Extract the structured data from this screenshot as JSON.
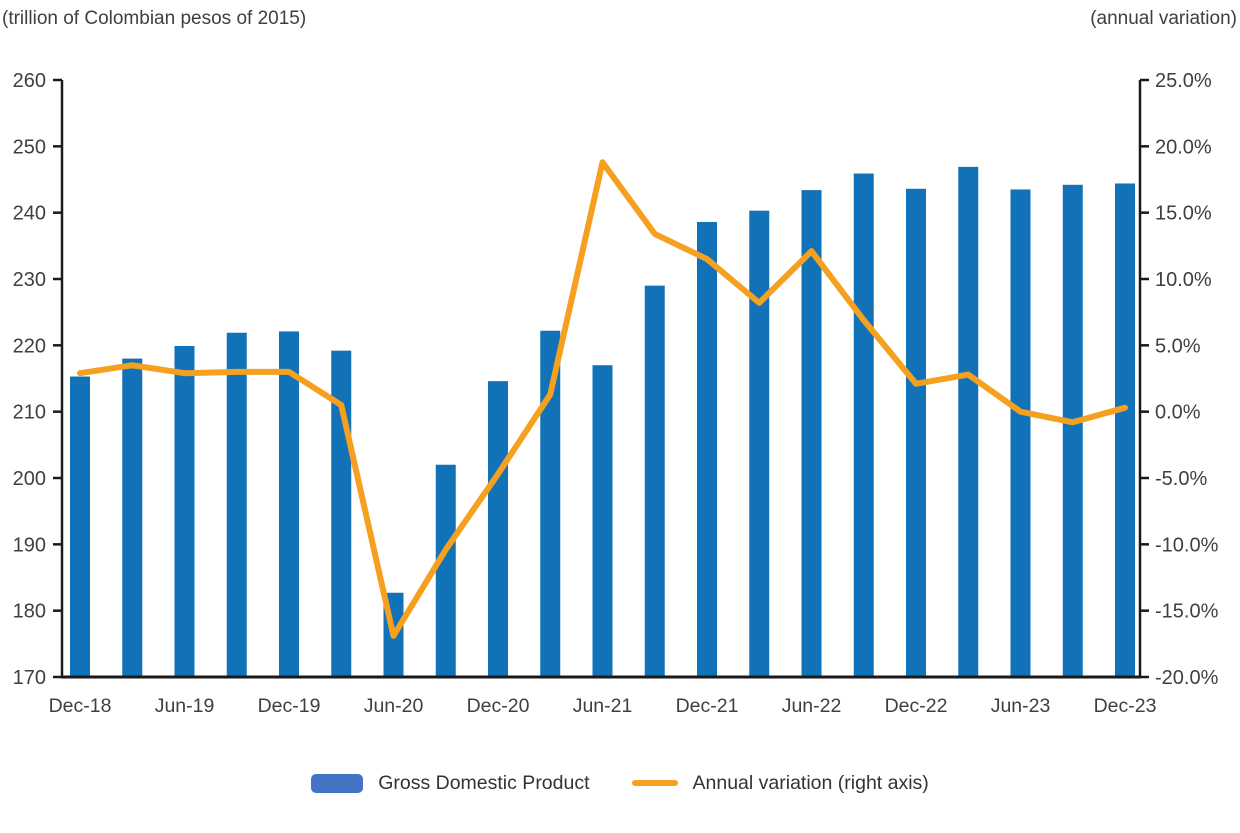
{
  "header": {
    "left": "(trillion of Colombian pesos of 2015)",
    "right": "(annual variation)"
  },
  "legend": {
    "bar_label": "Gross Domestic Product",
    "line_label": "Annual variation (right axis)"
  },
  "colors": {
    "bar": "#1272b8",
    "line": "#f5a01e",
    "legend_bar_swatch": "#4472c4",
    "axis": "#1a1a1a",
    "label_text": "#3f3f3f"
  },
  "chart_data": {
    "type": "combo",
    "categories": [
      "Dec-18",
      "Mar-19",
      "Jun-19",
      "Sep-19",
      "Dec-19",
      "Mar-20",
      "Jun-20",
      "Sep-20",
      "Dec-20",
      "Mar-21",
      "Jun-21",
      "Sep-21",
      "Dec-21",
      "Mar-22",
      "Jun-22",
      "Sep-22",
      "Dec-22",
      "Mar-23",
      "Jun-23",
      "Sep-23",
      "Dec-23"
    ],
    "x_tick_labels": [
      "Dec-18",
      "Jun-19",
      "Dec-19",
      "Jun-20",
      "Dec-20",
      "Jun-21",
      "Dec-21",
      "Jun-22",
      "Dec-22",
      "Jun-23",
      "Dec-23"
    ],
    "series": [
      {
        "name": "Gross Domestic Product",
        "type": "bar",
        "axis": "left",
        "values": [
          215.3,
          218.0,
          219.9,
          221.9,
          222.1,
          219.2,
          182.7,
          202.0,
          214.6,
          222.2,
          217.0,
          229.0,
          238.6,
          240.3,
          243.4,
          245.9,
          243.6,
          246.9,
          243.5,
          244.2,
          244.4
        ]
      },
      {
        "name": "Annual variation (right axis)",
        "type": "line",
        "axis": "right",
        "values": [
          2.9,
          3.5,
          2.9,
          3.0,
          3.0,
          0.5,
          -16.9,
          -10.4,
          -4.7,
          1.3,
          18.8,
          13.4,
          11.5,
          8.2,
          12.1,
          6.9,
          2.1,
          2.8,
          0.0,
          -0.8,
          0.3
        ]
      }
    ],
    "left_axis": {
      "min": 170,
      "max": 260,
      "step": 10,
      "label": "(trillion of Colombian pesos of 2015)"
    },
    "right_axis": {
      "min": -20,
      "max": 25,
      "step": 5,
      "format": "percent_1dp",
      "label": "(annual variation)"
    },
    "grid": false,
    "legend_position": "bottom"
  }
}
